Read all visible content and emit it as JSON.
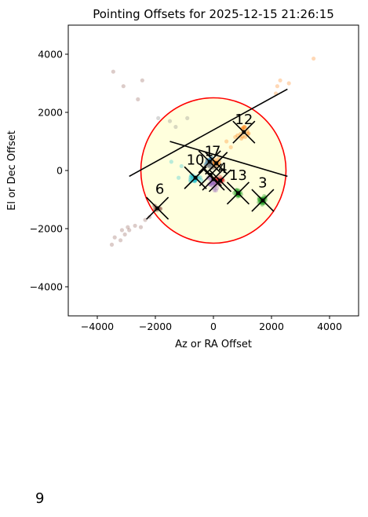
{
  "chart_data": {
    "type": "scatter",
    "title": "Pointing Offsets for 2025-12-15 21:26:15",
    "xlabel": "Az or RA Offset",
    "ylabel": "El or Dec Offset",
    "xlim": [
      -5000,
      5000
    ],
    "ylim": [
      -5000,
      5000
    ],
    "xticks": [
      -4000,
      -2000,
      0,
      2000,
      4000
    ],
    "yticks": [
      -4000,
      -2000,
      0,
      2000,
      4000
    ],
    "xtick_labels": [
      "−4000",
      "−2000",
      "0",
      "2000",
      "4000"
    ],
    "ytick_labels": [
      "−4000",
      "−2000",
      "0",
      "2000",
      "4000"
    ],
    "grid": false,
    "circle": {
      "center": [
        0,
        0
      ],
      "radius": 2500,
      "edge_color": "#ff0000",
      "fill_color": "#ffffdd"
    },
    "boresight_line": {
      "from": [
        -2900,
        -200
      ],
      "to": [
        2550,
        2800
      ]
    },
    "scan_line": {
      "from": [
        -1500,
        1000
      ],
      "to": [
        2550,
        -200
      ]
    },
    "clusters": [
      {
        "label": "3",
        "center": [
          1700,
          -1030
        ],
        "color": "#2ca02c",
        "spread": [
          180,
          180
        ],
        "count": 45
      },
      {
        "label": "6",
        "center": [
          -1930,
          -1300
        ],
        "color": "#8c564b",
        "spread": [
          250,
          120
        ],
        "count": 12
      },
      {
        "label": "10",
        "center": [
          -620,
          -250
        ],
        "color": "#17becf",
        "spread": [
          260,
          220
        ],
        "count": 25
      },
      {
        "label": "12",
        "center": [
          1050,
          1320
        ],
        "color": "#ff7f0e",
        "spread": [
          350,
          300
        ],
        "count": 15
      },
      {
        "label": "13",
        "center": [
          850,
          -780
        ],
        "color": "#2ca02c",
        "spread": [
          200,
          160
        ],
        "count": 30
      },
      {
        "label": "1",
        "center": [
          -130,
          300
        ],
        "color": "#1f77b4",
        "spread": [
          200,
          200
        ],
        "count": 18
      },
      {
        "label": "4",
        "center": [
          230,
          -350
        ],
        "color": "#d62728",
        "spread": [
          200,
          200
        ],
        "count": 25
      },
      {
        "label": "7",
        "center": [
          100,
          250
        ],
        "color": "#ff7f0e",
        "spread": [
          200,
          200
        ],
        "count": 18
      },
      {
        "label": "",
        "center": [
          0,
          -400
        ],
        "color": "#9467bd",
        "spread": [
          250,
          400
        ],
        "count": 25
      },
      {
        "label": "",
        "center": [
          -100,
          200
        ],
        "color": "#7f7f7f",
        "spread": [
          300,
          250
        ],
        "count": 15
      }
    ],
    "scatter_points": [
      {
        "x": -3450,
        "y": 3400,
        "color": "#8c564b"
      },
      {
        "x": -3100,
        "y": 2900,
        "color": "#8c564b"
      },
      {
        "x": -2450,
        "y": 3100,
        "color": "#8c564b"
      },
      {
        "x": -2600,
        "y": 2450,
        "color": "#8c564b"
      },
      {
        "x": -3400,
        "y": -2300,
        "color": "#8c564b"
      },
      {
        "x": -3500,
        "y": -2550,
        "color": "#8c564b"
      },
      {
        "x": -3200,
        "y": -2400,
        "color": "#8c564b"
      },
      {
        "x": -3050,
        "y": -2200,
        "color": "#8c564b"
      },
      {
        "x": -2900,
        "y": -2050,
        "color": "#8c564b"
      },
      {
        "x": -2700,
        "y": -1900,
        "color": "#8c564b"
      },
      {
        "x": -2500,
        "y": -1950,
        "color": "#8c564b"
      },
      {
        "x": -2350,
        "y": -1700,
        "color": "#8c564b"
      },
      {
        "x": -2200,
        "y": -1600,
        "color": "#8c564b"
      },
      {
        "x": -2950,
        "y": -1950,
        "color": "#8c564b"
      },
      {
        "x": -3150,
        "y": -2050,
        "color": "#8c564b"
      },
      {
        "x": 3450,
        "y": 3850,
        "color": "#ff7f0e"
      },
      {
        "x": 2300,
        "y": 3100,
        "color": "#ff7f0e"
      },
      {
        "x": 2600,
        "y": 3000,
        "color": "#ff7f0e"
      },
      {
        "x": 2150,
        "y": 2650,
        "color": "#ff7f0e"
      },
      {
        "x": 2200,
        "y": 2900,
        "color": "#ff7f0e"
      },
      {
        "x": -1900,
        "y": 1800,
        "color": "#7f7f7f"
      },
      {
        "x": -1500,
        "y": 1700,
        "color": "#7f7f7f"
      },
      {
        "x": -900,
        "y": 1800,
        "color": "#7f7f7f"
      },
      {
        "x": -1300,
        "y": 1500,
        "color": "#7f7f7f"
      },
      {
        "x": -1200,
        "y": -250,
        "color": "#17becf"
      },
      {
        "x": -1450,
        "y": 300,
        "color": "#17becf"
      },
      {
        "x": -1100,
        "y": 150,
        "color": "#17becf"
      },
      {
        "x": 600,
        "y": 800,
        "color": "#ff7f0e"
      },
      {
        "x": 450,
        "y": 1000,
        "color": "#ff7f0e"
      },
      {
        "x": 750,
        "y": 1150,
        "color": "#ff7f0e"
      }
    ],
    "markers": [
      {
        "x": 1700,
        "y": -1030
      },
      {
        "x": 850,
        "y": -780
      },
      {
        "x": 1050,
        "y": 1320
      },
      {
        "x": -1930,
        "y": -1300
      },
      {
        "x": -620,
        "y": -250
      },
      {
        "x": -130,
        "y": 300
      },
      {
        "x": 100,
        "y": 250
      },
      {
        "x": 230,
        "y": -350
      },
      {
        "x": 0,
        "y": -300
      },
      {
        "x": -100,
        "y": -150
      }
    ],
    "point_labels": [
      {
        "text": "12",
        "x": 1050,
        "y": 1600
      },
      {
        "text": "3",
        "x": 1700,
        "y": -580
      },
      {
        "text": "6",
        "x": -1850,
        "y": -800
      },
      {
        "text": "13",
        "x": 850,
        "y": -330
      },
      {
        "text": "10",
        "x": -620,
        "y": 200
      },
      {
        "text": "1",
        "x": -150,
        "y": 500
      },
      {
        "text": "7",
        "x": 100,
        "y": 500
      },
      {
        "text": "4",
        "x": 320,
        "y": -80
      }
    ]
  },
  "footer": {
    "text": "9"
  }
}
